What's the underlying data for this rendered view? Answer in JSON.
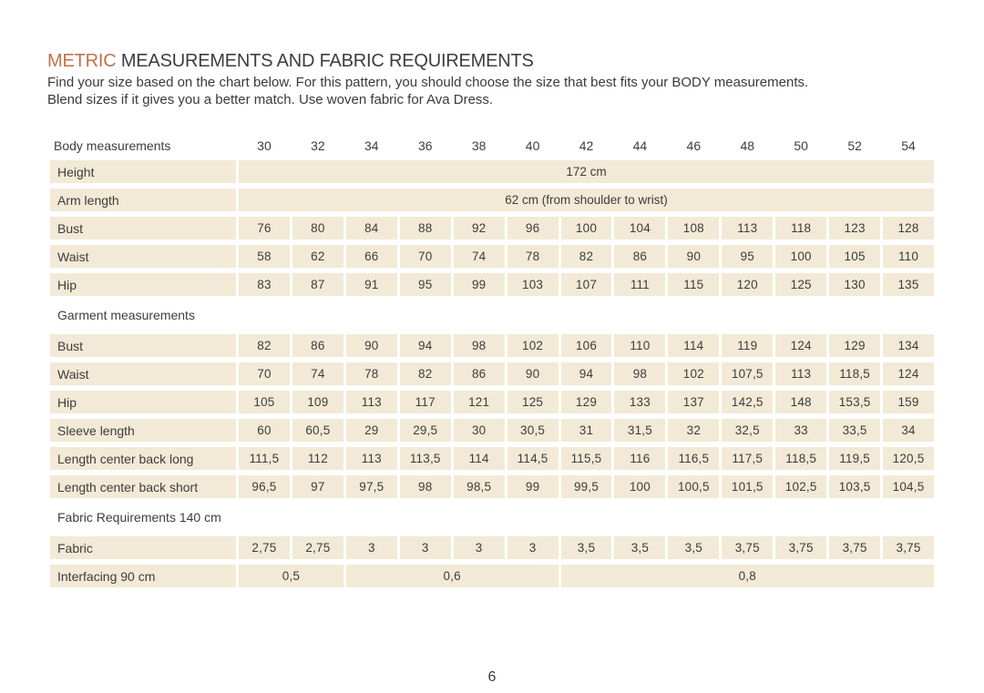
{
  "page": {
    "title_highlight": "METRIC",
    "title_rest": " MEASUREMENTS AND FABRIC REQUIREMENTS",
    "intro_line1": "Find your size based on the chart below. For this pattern, you should choose the size that best fits your BODY measurements.",
    "intro_line2": "Blend sizes if it gives you a better match. Use woven fabric for Ava Dress.",
    "page_number": "6"
  },
  "colors": {
    "accent": "#c3714a",
    "cell_background": "#f2ead6",
    "text": "#3d3d3d"
  },
  "table": {
    "sizes": [
      "30",
      "32",
      "34",
      "36",
      "38",
      "40",
      "42",
      "44",
      "46",
      "48",
      "50",
      "52",
      "54"
    ],
    "rows": [
      {
        "type": "header",
        "label": "Body measurements"
      },
      {
        "type": "merged",
        "label": "Height",
        "value": "172 cm"
      },
      {
        "type": "merged",
        "label": "Arm length",
        "value": "62 cm (from shoulder to wrist)"
      },
      {
        "type": "cells",
        "label": "Bust",
        "values": [
          "76",
          "80",
          "84",
          "88",
          "92",
          "96",
          "100",
          "104",
          "108",
          "113",
          "118",
          "123",
          "128"
        ]
      },
      {
        "type": "cells",
        "label": "Waist",
        "values": [
          "58",
          "62",
          "66",
          "70",
          "74",
          "78",
          "82",
          "86",
          "90",
          "95",
          "100",
          "105",
          "110"
        ]
      },
      {
        "type": "cells",
        "label": "Hip",
        "values": [
          "83",
          "87",
          "91",
          "95",
          "99",
          "103",
          "107",
          "111",
          "115",
          "120",
          "125",
          "130",
          "135"
        ]
      },
      {
        "type": "section",
        "label": "Garment measurements"
      },
      {
        "type": "cells",
        "label": "Bust",
        "values": [
          "82",
          "86",
          "90",
          "94",
          "98",
          "102",
          "106",
          "110",
          "114",
          "119",
          "124",
          "129",
          "134"
        ]
      },
      {
        "type": "cells",
        "label": "Waist",
        "values": [
          "70",
          "74",
          "78",
          "82",
          "86",
          "90",
          "94",
          "98",
          "102",
          "107,5",
          "113",
          "118,5",
          "124"
        ]
      },
      {
        "type": "cells",
        "label": "Hip",
        "values": [
          "105",
          "109",
          "113",
          "117",
          "121",
          "125",
          "129",
          "133",
          "137",
          "142,5",
          "148",
          "153,5",
          "159"
        ]
      },
      {
        "type": "cells",
        "label": "Sleeve length",
        "values": [
          "60",
          "60,5",
          "29",
          "29,5",
          "30",
          "30,5",
          "31",
          "31,5",
          "32",
          "32,5",
          "33",
          "33,5",
          "34"
        ]
      },
      {
        "type": "cells",
        "label": "Length center back long",
        "values": [
          "111,5",
          "112",
          "113",
          "113,5",
          "114",
          "114,5",
          "115,5",
          "116",
          "116,5",
          "117,5",
          "118,5",
          "119,5",
          "120,5"
        ]
      },
      {
        "type": "cells",
        "label": "Length center back short",
        "values": [
          "96,5",
          "97",
          "97,5",
          "98",
          "98,5",
          "99",
          "99,5",
          "100",
          "100,5",
          "101,5",
          "102,5",
          "103,5",
          "104,5"
        ]
      },
      {
        "type": "section",
        "label": "Fabric Requirements 140 cm"
      },
      {
        "type": "cells",
        "label": "Fabric",
        "values": [
          "2,75",
          "2,75",
          "3",
          "3",
          "3",
          "3",
          "3,5",
          "3,5",
          "3,5",
          "3,75",
          "3,75",
          "3,75",
          "3,75"
        ]
      },
      {
        "type": "spans",
        "label": "Interfacing 90 cm",
        "spans": [
          {
            "value": "0,5",
            "cols": 2
          },
          {
            "value": "0,6",
            "cols": 4
          },
          {
            "value": "0,8",
            "cols": 7
          }
        ]
      }
    ]
  }
}
